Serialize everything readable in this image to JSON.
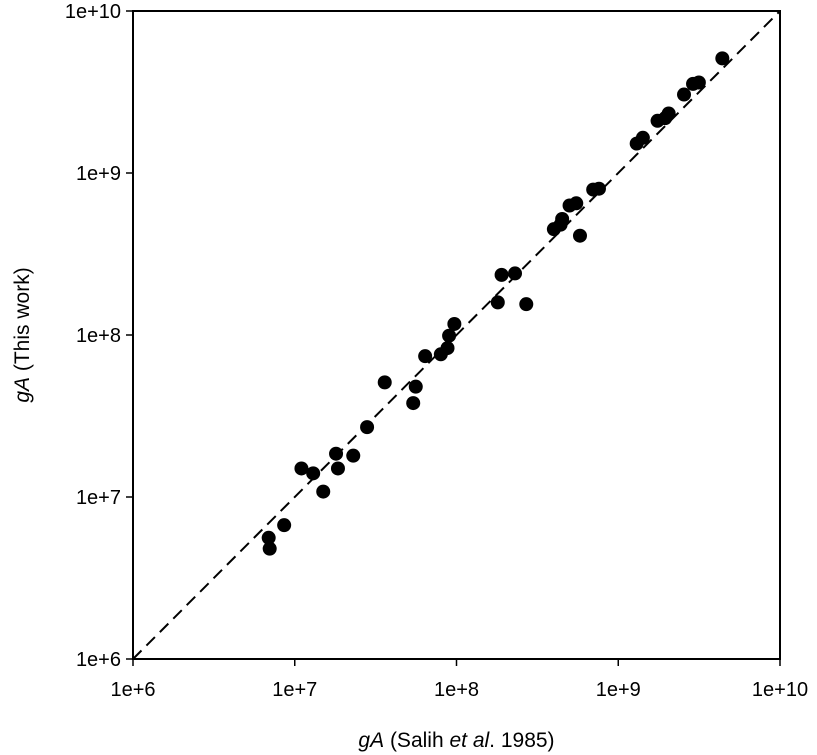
{
  "chart_data": {
    "type": "scatter",
    "title": "",
    "x_axis": {
      "scale": "log",
      "range": [
        1000000,
        10000000000
      ],
      "tick_values": [
        1000000,
        10000000,
        100000000,
        1000000000,
        10000000000
      ],
      "tick_labels": [
        "1e+6",
        "1e+7",
        "1e+8",
        "1e+9",
        "1e+10"
      ],
      "label_parts": [
        {
          "text": "gA",
          "italic": true
        },
        {
          "text": " (Salih ",
          "italic": false
        },
        {
          "text": "et al",
          "italic": true
        },
        {
          "text": ". 1985)",
          "italic": false
        }
      ]
    },
    "y_axis": {
      "scale": "log",
      "range": [
        1000000,
        10000000000
      ],
      "tick_values": [
        1000000,
        10000000,
        100000000,
        1000000000,
        10000000000
      ],
      "tick_labels": [
        "1e+6",
        "1e+7",
        "1e+8",
        "1e+9",
        "1e+10"
      ],
      "label_parts": [
        {
          "text": "gA",
          "italic": true
        },
        {
          "text": " (This work)",
          "italic": false
        }
      ]
    },
    "grid": false,
    "legend": "none",
    "reference_line": {
      "style": "dashed",
      "from": [
        1000000,
        1000000
      ],
      "to": [
        10000000000,
        10000000000
      ]
    },
    "marker_color": "#000000",
    "points": {
      "x": [
        6900000,
        7000000,
        8600000,
        11000000,
        13000000,
        15000000,
        18000000,
        18500000,
        23000000,
        28000000,
        36000000,
        54000000,
        56000000,
        64000000,
        80000000,
        88000000,
        90000000,
        97000000,
        180000000,
        190000000,
        230000000,
        270000000,
        400000000,
        440000000,
        450000000,
        500000000,
        550000000,
        580000000,
        700000000,
        760000000,
        1300000000,
        1420000000,
        1750000000,
        1950000000,
        2050000000,
        2550000000,
        2900000000,
        3150000000,
        4400000000
      ],
      "y": [
        5600000,
        4800000,
        6700000,
        15000000,
        14000000,
        10800000,
        18500000,
        15000000,
        18000000,
        27000000,
        51000000,
        38000000,
        48000000,
        74000000,
        76000000,
        83000000,
        99000000,
        117000000,
        159000000,
        235000000,
        240000000,
        155000000,
        450000000,
        480000000,
        520000000,
        630000000,
        650000000,
        410000000,
        790000000,
        800000000,
        1520000000,
        1650000000,
        2100000000,
        2180000000,
        2330000000,
        3050000000,
        3550000000,
        3620000000,
        5100000000
      ]
    }
  }
}
